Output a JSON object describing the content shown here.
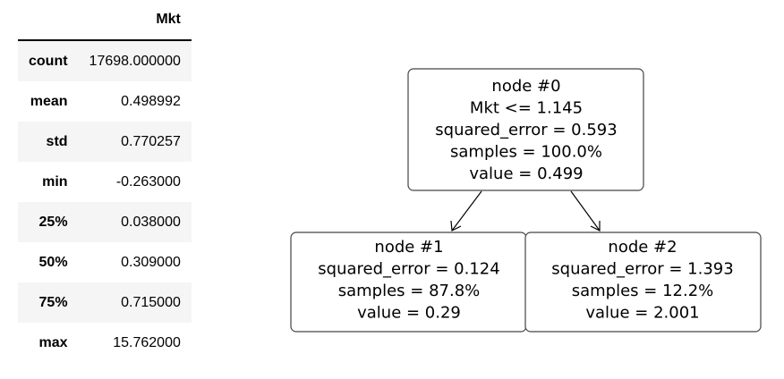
{
  "table": {
    "header": [
      "",
      "Mkt"
    ],
    "rows": [
      [
        "count",
        "17698.000000"
      ],
      [
        "mean",
        "0.498992"
      ],
      [
        "std",
        "0.770257"
      ],
      [
        "min",
        "-0.263000"
      ],
      [
        "25%",
        "0.038000"
      ],
      [
        "50%",
        "0.309000"
      ],
      [
        "75%",
        "0.715000"
      ],
      [
        "max",
        "15.762000"
      ]
    ]
  },
  "tree": {
    "nodes": [
      {
        "lines": [
          "node #0",
          "Mkt <= 1.145",
          "squared_error = 0.593",
          "samples = 100.0%",
          "value = 0.499"
        ]
      },
      {
        "lines": [
          "node #1",
          "squared_error = 0.124",
          "samples = 87.8%",
          "value = 0.29"
        ]
      },
      {
        "lines": [
          "node #2",
          "squared_error = 1.393",
          "samples = 12.2%",
          "value = 2.001"
        ]
      }
    ]
  }
}
